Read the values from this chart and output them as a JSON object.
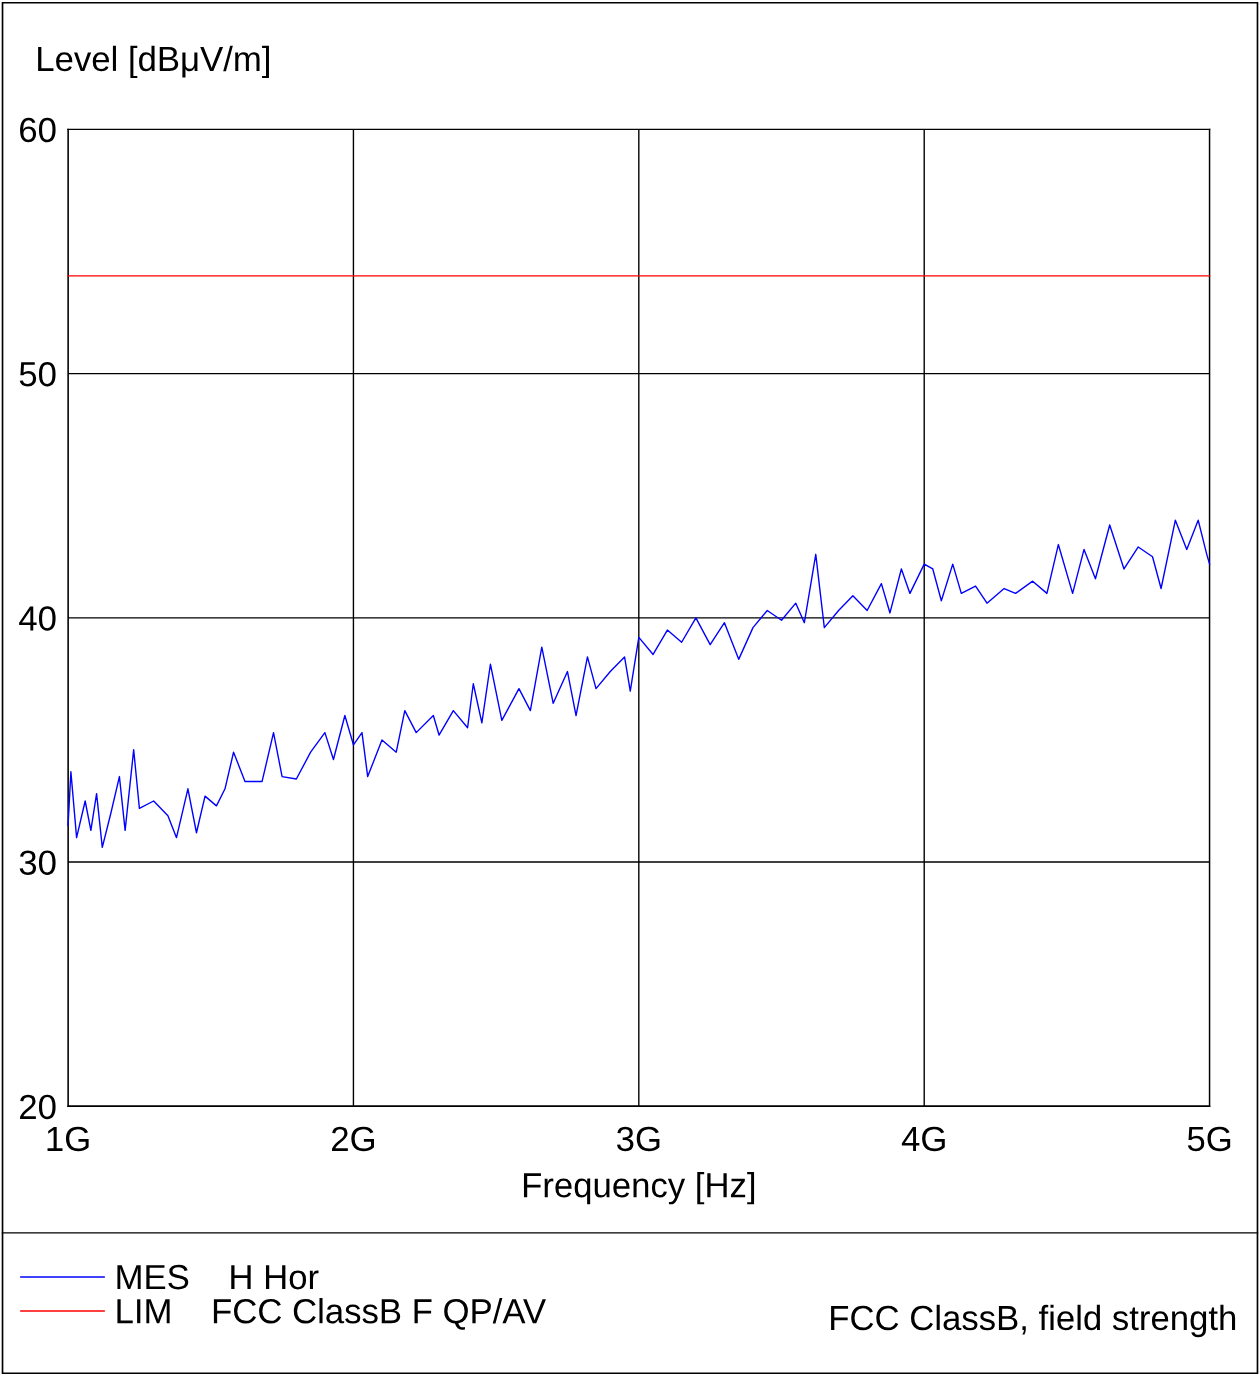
{
  "chart_data": {
    "type": "line",
    "ylabel": "Level [dBμV/m]",
    "xlabel": "Frequency [Hz]",
    "xlim": [
      1,
      5
    ],
    "xticks": [
      {
        "value": 1,
        "label": "1G"
      },
      {
        "value": 2,
        "label": "2G"
      },
      {
        "value": 3,
        "label": "3G"
      },
      {
        "value": 4,
        "label": "4G"
      },
      {
        "value": 5,
        "label": "5G"
      }
    ],
    "ylim": [
      20,
      60
    ],
    "yticks": [
      20,
      30,
      40,
      50,
      60
    ],
    "grid": true,
    "legend": "bottom",
    "line_style": "solid",
    "marker": "none",
    "annotations": [
      "FCC ClassB, field strength"
    ],
    "series": [
      {
        "name": "MES    H Hor",
        "color": "#0000ff",
        "x": [
          1.0,
          1.01,
          1.03,
          1.06,
          1.08,
          1.1,
          1.12,
          1.15,
          1.18,
          1.2,
          1.23,
          1.25,
          1.3,
          1.35,
          1.38,
          1.42,
          1.45,
          1.48,
          1.52,
          1.55,
          1.58,
          1.62,
          1.68,
          1.72,
          1.75,
          1.8,
          1.85,
          1.9,
          1.93,
          1.97,
          2.0,
          2.03,
          2.05,
          2.1,
          2.15,
          2.18,
          2.22,
          2.28,
          2.3,
          2.35,
          2.4,
          2.42,
          2.45,
          2.48,
          2.52,
          2.58,
          2.62,
          2.66,
          2.7,
          2.75,
          2.78,
          2.82,
          2.85,
          2.9,
          2.95,
          2.97,
          3.0,
          3.05,
          3.1,
          3.15,
          3.2,
          3.25,
          3.3,
          3.35,
          3.4,
          3.45,
          3.5,
          3.55,
          3.58,
          3.62,
          3.65,
          3.7,
          3.75,
          3.8,
          3.85,
          3.88,
          3.92,
          3.95,
          4.0,
          4.03,
          4.06,
          4.1,
          4.13,
          4.18,
          4.22,
          4.28,
          4.32,
          4.38,
          4.43,
          4.47,
          4.52,
          4.56,
          4.6,
          4.65,
          4.7,
          4.75,
          4.8,
          4.83,
          4.88,
          4.92,
          4.96,
          4.99,
          5.0
        ],
        "values": [
          31.5,
          33.7,
          31.0,
          32.5,
          31.3,
          32.8,
          30.6,
          32.0,
          33.5,
          31.3,
          34.6,
          32.2,
          32.5,
          31.9,
          31.0,
          33.0,
          31.2,
          32.7,
          32.3,
          33.0,
          34.5,
          33.3,
          33.3,
          35.3,
          33.5,
          33.4,
          34.5,
          35.3,
          34.2,
          36.0,
          34.8,
          35.3,
          33.5,
          35.0,
          34.5,
          36.2,
          35.3,
          36.0,
          35.2,
          36.2,
          35.5,
          37.3,
          35.7,
          38.1,
          35.8,
          37.1,
          36.2,
          38.8,
          36.5,
          37.8,
          36.0,
          38.4,
          37.1,
          37.8,
          38.4,
          37.0,
          39.2,
          38.5,
          39.5,
          39.0,
          40.0,
          38.9,
          39.8,
          38.3,
          39.6,
          40.3,
          39.9,
          40.6,
          39.8,
          42.6,
          39.6,
          40.3,
          40.9,
          40.3,
          41.4,
          40.2,
          42.0,
          41.0,
          42.2,
          42.0,
          40.7,
          42.2,
          41.0,
          41.3,
          40.6,
          41.2,
          41.0,
          41.5,
          41.0,
          43.0,
          41.0,
          42.8,
          41.6,
          43.8,
          42.0,
          42.9,
          42.5,
          41.2,
          44.0,
          42.8,
          44.0,
          42.6,
          42.2
        ]
      },
      {
        "name": "LIM    FCC ClassB F QP/AV",
        "color": "#ff0000",
        "x": [
          1,
          5
        ],
        "values": [
          54,
          54
        ]
      }
    ]
  }
}
